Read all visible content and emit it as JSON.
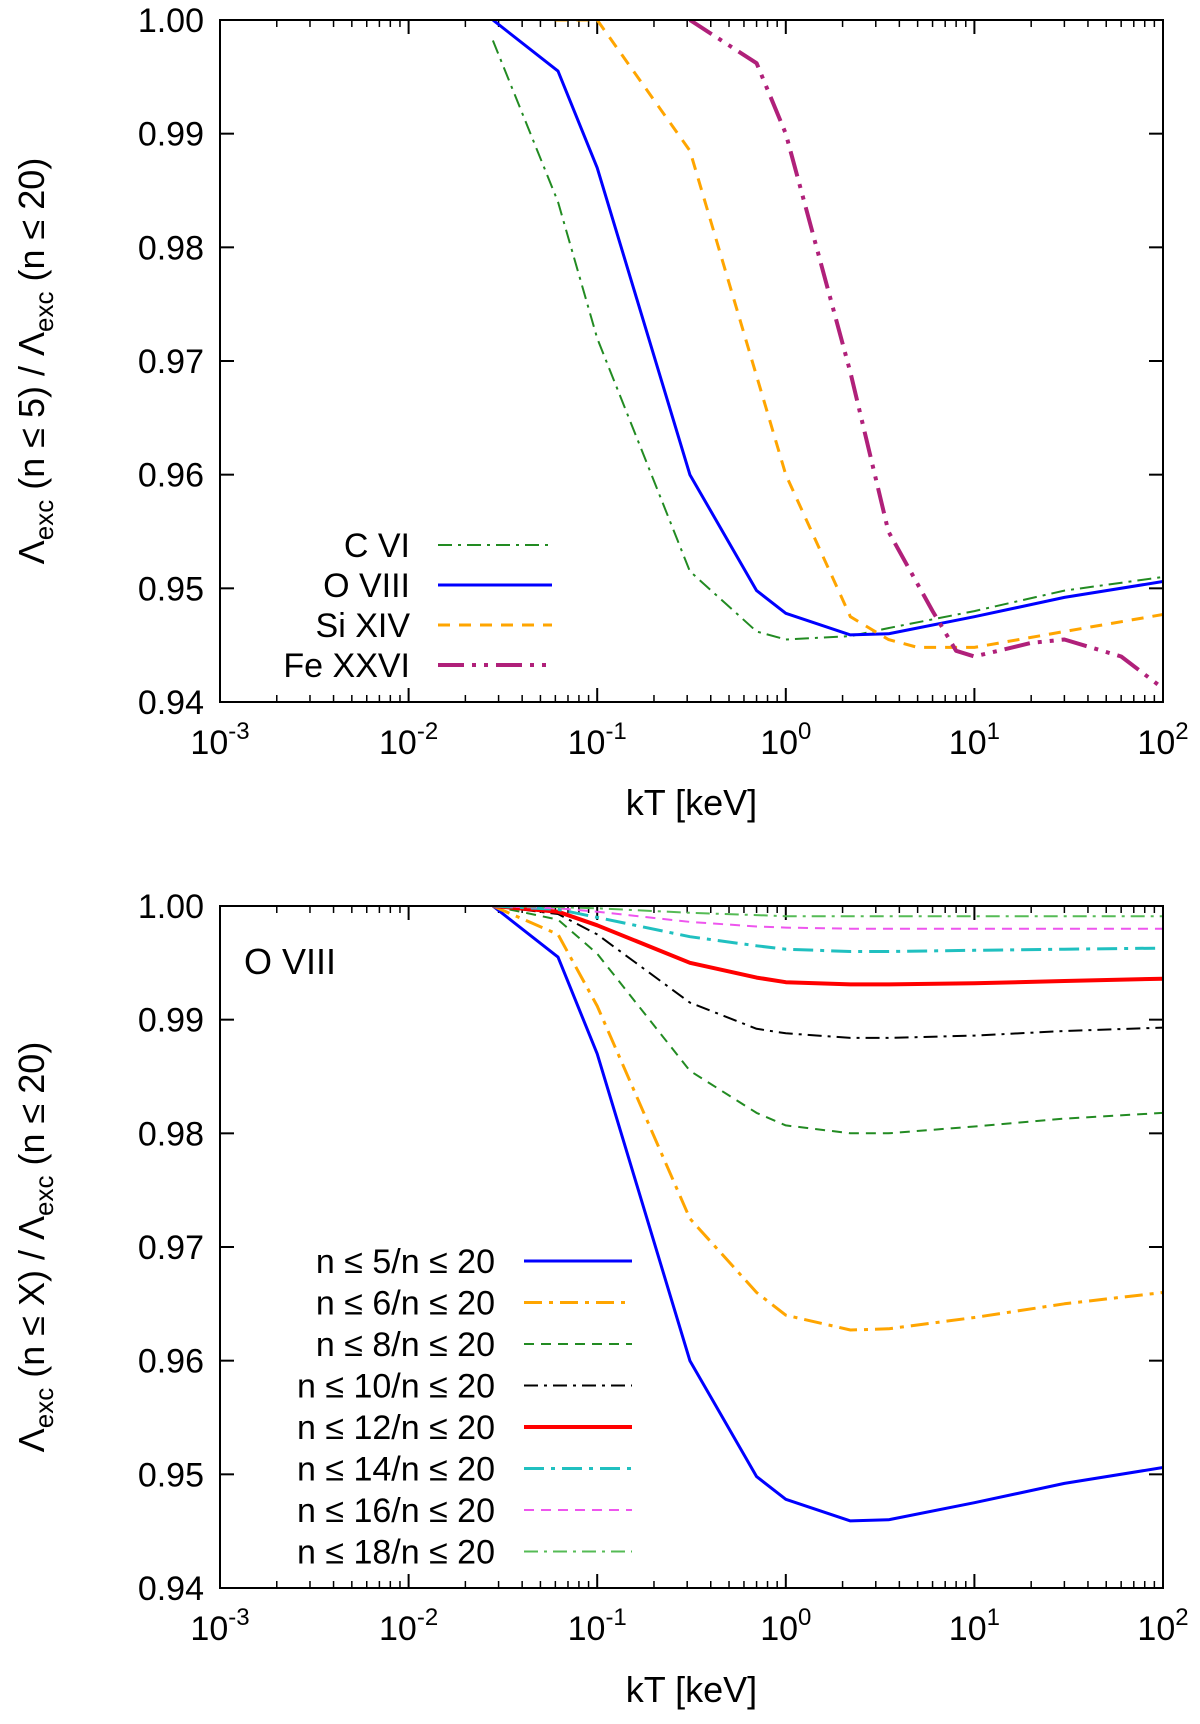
{
  "chart_data": [
    {
      "type": "line",
      "xscale": "log",
      "xlim": [
        0.001,
        100
      ],
      "ylim": [
        0.94,
        1.0
      ],
      "xticks": [
        {
          "value": 0.001,
          "base": "10",
          "exp": "-3"
        },
        {
          "value": 0.01,
          "base": "10",
          "exp": "-2"
        },
        {
          "value": 0.1,
          "base": "10",
          "exp": "-1"
        },
        {
          "value": 1,
          "base": "10",
          "exp": "0"
        },
        {
          "value": 10,
          "base": "10",
          "exp": "1"
        },
        {
          "value": 100,
          "base": "10",
          "exp": "2"
        }
      ],
      "yticks": [
        {
          "value": 0.94,
          "label": "0.94"
        },
        {
          "value": 0.95,
          "label": "0.95"
        },
        {
          "value": 0.96,
          "label": "0.96"
        },
        {
          "value": 0.97,
          "label": "0.97"
        },
        {
          "value": 0.98,
          "label": "0.98"
        },
        {
          "value": 0.99,
          "label": "0.99"
        },
        {
          "value": 1.0,
          "label": "1.00"
        }
      ],
      "xlabel": "kT [keV]",
      "ylabel": {
        "lambda": "Λ",
        "sub": "exc",
        "num": " (n ≤ 5) / ",
        "den": " (n ≤ 20)"
      },
      "annotation": "",
      "legend_position": "bottom-left",
      "series": [
        {
          "name": "C VI",
          "color": "#228b22",
          "dash": "14,6,3,6",
          "width": 2,
          "x": [
            0.028,
            0.062,
            0.1,
            0.31,
            0.7,
            1.0,
            2.2,
            3.5,
            10,
            30,
            100
          ],
          "y": [
            0.9982,
            0.984,
            0.972,
            0.9515,
            0.9462,
            0.9455,
            0.9458,
            0.9465,
            0.948,
            0.9498,
            0.951
          ]
        },
        {
          "name": "O VIII",
          "color": "#0000ff",
          "dash": "",
          "width": 3,
          "x": [
            0.028,
            0.062,
            0.1,
            0.31,
            0.7,
            1.0,
            2.2,
            3.5,
            10,
            30,
            100
          ],
          "y": [
            1.0,
            0.9955,
            0.987,
            0.96,
            0.9498,
            0.9478,
            0.9459,
            0.946,
            0.9475,
            0.9492,
            0.9506
          ]
        },
        {
          "name": "Si XIV",
          "color": "#ffa500",
          "dash": "12,9",
          "width": 3,
          "x": [
            0.06,
            0.1,
            0.31,
            1.0,
            2.2,
            3.5,
            5,
            10,
            30,
            100
          ],
          "y": [
            1.0,
            1.0,
            0.9885,
            0.96,
            0.9475,
            0.9455,
            0.9448,
            0.9448,
            0.9462,
            0.9477
          ]
        },
        {
          "name": "Fe XXVI",
          "color": "#b0207a",
          "dash": "26,8,4,8,4,8",
          "width": 4,
          "x": [
            0.31,
            0.7,
            1.0,
            2.2,
            3.5,
            6,
            8,
            10,
            20,
            30,
            60,
            100
          ],
          "y": [
            1.0,
            0.9962,
            0.99,
            0.969,
            0.955,
            0.948,
            0.9445,
            0.944,
            0.9452,
            0.9455,
            0.944,
            0.9412
          ]
        }
      ]
    },
    {
      "type": "line",
      "xscale": "log",
      "xlim": [
        0.001,
        100
      ],
      "ylim": [
        0.94,
        1.0
      ],
      "xticks": [
        {
          "value": 0.001,
          "base": "10",
          "exp": "-3"
        },
        {
          "value": 0.01,
          "base": "10",
          "exp": "-2"
        },
        {
          "value": 0.1,
          "base": "10",
          "exp": "-1"
        },
        {
          "value": 1,
          "base": "10",
          "exp": "0"
        },
        {
          "value": 10,
          "base": "10",
          "exp": "1"
        },
        {
          "value": 100,
          "base": "10",
          "exp": "2"
        }
      ],
      "yticks": [
        {
          "value": 0.94,
          "label": "0.94"
        },
        {
          "value": 0.95,
          "label": "0.95"
        },
        {
          "value": 0.96,
          "label": "0.96"
        },
        {
          "value": 0.97,
          "label": "0.97"
        },
        {
          "value": 0.98,
          "label": "0.98"
        },
        {
          "value": 0.99,
          "label": "0.99"
        },
        {
          "value": 1.0,
          "label": "1.00"
        }
      ],
      "xlabel": "kT [keV]",
      "ylabel": {
        "lambda": "Λ",
        "sub": "exc",
        "num": " (n ≤ X) / ",
        "den": " (n ≤ 20)"
      },
      "annotation": "O VIII",
      "legend_position": "bottom-left",
      "series": [
        {
          "name": "n ≤ 5/n ≤ 20",
          "color": "#0000ff",
          "dash": "",
          "width": 3,
          "x": [
            0.028,
            0.062,
            0.1,
            0.31,
            0.7,
            1.0,
            2.2,
            3.5,
            10,
            30,
            100
          ],
          "y": [
            1.0,
            0.9955,
            0.987,
            0.96,
            0.9498,
            0.9478,
            0.9459,
            0.946,
            0.9475,
            0.9492,
            0.9506
          ]
        },
        {
          "name": "n ≤ 6/n ≤ 20",
          "color": "#ffa500",
          "dash": "18,7,4,7",
          "width": 3,
          "x": [
            0.028,
            0.062,
            0.1,
            0.31,
            0.7,
            1.0,
            2.2,
            3.5,
            10,
            30,
            100
          ],
          "y": [
            1.0,
            0.9975,
            0.9912,
            0.9725,
            0.966,
            0.964,
            0.9627,
            0.9628,
            0.9638,
            0.965,
            0.966
          ]
        },
        {
          "name": "n ≤ 8/n ≤ 20",
          "color": "#228b22",
          "dash": "10,7",
          "width": 2,
          "x": [
            0.028,
            0.062,
            0.1,
            0.31,
            0.7,
            1.0,
            2.2,
            3.5,
            10,
            30,
            100
          ],
          "y": [
            1.0,
            0.9988,
            0.9958,
            0.9855,
            0.9818,
            0.9807,
            0.98,
            0.98,
            0.9806,
            0.9813,
            0.9818
          ]
        },
        {
          "name": "n ≤ 10/n ≤ 20",
          "color": "#000000",
          "dash": "14,6,3,6",
          "width": 2,
          "x": [
            0.028,
            0.062,
            0.1,
            0.31,
            0.7,
            1.0,
            2.2,
            3.5,
            10,
            30,
            100
          ],
          "y": [
            1.0,
            0.9993,
            0.9975,
            0.9915,
            0.9892,
            0.9888,
            0.9884,
            0.9884,
            0.9886,
            0.989,
            0.9893
          ]
        },
        {
          "name": "n ≤ 12/n ≤ 20",
          "color": "#ff0000",
          "dash": "",
          "width": 4,
          "x": [
            0.028,
            0.062,
            0.1,
            0.31,
            0.7,
            1.0,
            2.2,
            3.5,
            10,
            30,
            100
          ],
          "y": [
            1.0,
            0.9995,
            0.9983,
            0.995,
            0.9937,
            0.9933,
            0.9931,
            0.9931,
            0.9932,
            0.9934,
            0.9936
          ]
        },
        {
          "name": "n ≤ 14/n ≤ 20",
          "color": "#20c0c0",
          "dash": "20,7,4,7",
          "width": 3,
          "x": [
            0.028,
            0.062,
            0.1,
            0.31,
            0.7,
            1.0,
            2.2,
            3.5,
            10,
            30,
            100
          ],
          "y": [
            1.0,
            0.9997,
            0.999,
            0.9973,
            0.9965,
            0.9962,
            0.996,
            0.996,
            0.9961,
            0.9962,
            0.9963
          ]
        },
        {
          "name": "n ≤ 16/n ≤ 20",
          "color": "#ee55ee",
          "dash": "10,7",
          "width": 2,
          "x": [
            0.028,
            0.062,
            0.1,
            0.31,
            0.7,
            1.0,
            2.2,
            3.5,
            10,
            30,
            100
          ],
          "y": [
            1.0,
            0.9998,
            0.9995,
            0.9986,
            0.9982,
            0.9981,
            0.998,
            0.998,
            0.998,
            0.998,
            0.998
          ]
        },
        {
          "name": "n ≤ 18/n ≤ 20",
          "color": "#55bb55",
          "dash": "14,6,3,6",
          "width": 2,
          "x": [
            0.028,
            0.062,
            0.1,
            0.31,
            0.7,
            1.0,
            2.2,
            3.5,
            10,
            30,
            100
          ],
          "y": [
            1.0,
            0.9999,
            0.9998,
            0.9994,
            0.9992,
            0.9991,
            0.9991,
            0.9991,
            0.9991,
            0.9991,
            0.9991
          ]
        }
      ]
    }
  ]
}
